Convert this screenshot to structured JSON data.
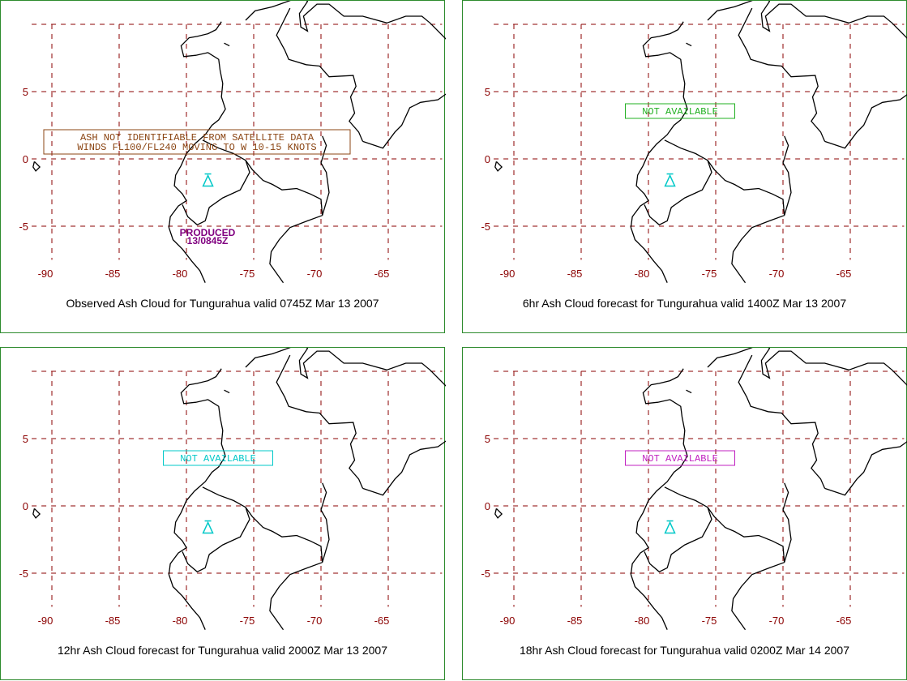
{
  "panels": [
    {
      "caption": "Observed Ash Cloud for Tungurahua valid 0745Z Mar 13 2007",
      "notes": [
        {
          "lines": [
            "ASH NOT IDENTIFIABLE FROM SATELLITE DATA",
            "WINDS FL100/FL240 MOVING TO W 10-15 KNOTS"
          ],
          "color": "#8b4513"
        }
      ],
      "produced": [
        "PRODUCED",
        "13/0845Z"
      ]
    },
    {
      "caption": "6hr Ash Cloud forecast for Tungurahua valid 1400Z Mar 13 2007",
      "notes": [
        {
          "lines": [
            "NOT AVAILABLE"
          ],
          "color": "#22b022"
        }
      ]
    },
    {
      "caption": "12hr Ash Cloud forecast for Tungurahua valid 2000Z Mar 13 2007",
      "notes": [
        {
          "lines": [
            "NOT AVAILABLE"
          ],
          "color": "#00c8c8"
        }
      ]
    },
    {
      "caption": "18hr Ash Cloud forecast for Tungurahua valid 0200Z Mar 14 2007",
      "notes": [
        {
          "lines": [
            "NOT AVAILABLE"
          ],
          "color": "#c020c0"
        }
      ]
    }
  ],
  "axes": {
    "lon_ticks": [
      "-90",
      "-85",
      "-80",
      "-75",
      "-70",
      "-65"
    ],
    "lat_ticks": [
      "5",
      "0",
      "-5"
    ]
  },
  "colors": {
    "grid": "#8b0000",
    "tick_label": "#8b0000",
    "volcano": "#00c8c8",
    "produced": "#800080",
    "border": "#2e8b2e"
  }
}
